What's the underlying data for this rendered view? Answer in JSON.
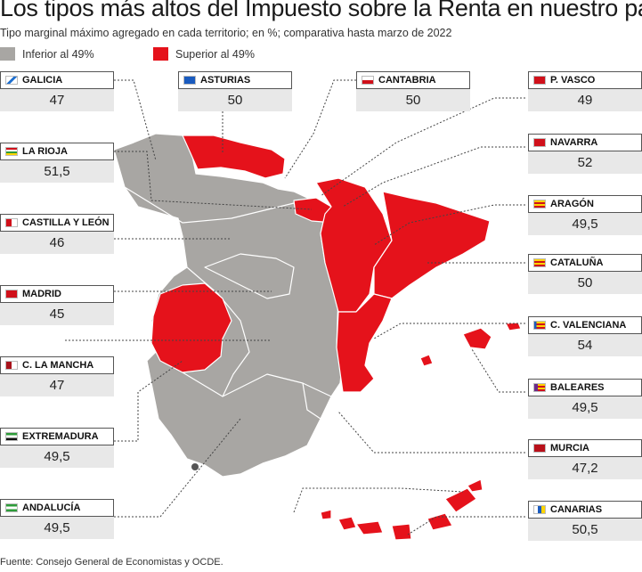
{
  "title": "Los tipos más altos del Impuesto sobre la Renta en nuestro país...",
  "subtitle": "Tipo marginal máximo agregado en cada territorio; en %; comparativa hasta marzo de 2022",
  "legend": [
    {
      "label": "Inferior al 49%",
      "color": "#a8a6a3"
    },
    {
      "label": "Superior al 49%",
      "color": "#e5121b"
    }
  ],
  "regions": [
    {
      "id": "galicia",
      "name": "GALICIA",
      "value": "47",
      "flag": "galicia-flag-icon"
    },
    {
      "id": "asturias",
      "name": "ASTURIAS",
      "value": "50",
      "flag": "asturias-flag-icon"
    },
    {
      "id": "cantabria",
      "name": "CANTABRIA",
      "value": "50",
      "flag": "cantabria-flag-icon"
    },
    {
      "id": "pvasco",
      "name": "P. VASCO",
      "value": "49",
      "flag": "pais-vasco-flag-icon"
    },
    {
      "id": "larioja",
      "name": "LA RIOJA",
      "value": "51,5",
      "flag": "la-rioja-flag-icon"
    },
    {
      "id": "navarra",
      "name": "NAVARRA",
      "value": "52",
      "flag": "navarra-flag-icon"
    },
    {
      "id": "castillaleon",
      "name": "CASTILLA Y LEÓN",
      "value": "46",
      "flag": "castilla-leon-flag-icon"
    },
    {
      "id": "aragon",
      "name": "ARAGÓN",
      "value": "49,5",
      "flag": "aragon-flag-icon"
    },
    {
      "id": "madrid",
      "name": "MADRID",
      "value": "45",
      "flag": "madrid-flag-icon"
    },
    {
      "id": "cataluna",
      "name": "CATALUÑA",
      "value": "50",
      "flag": "cataluna-flag-icon"
    },
    {
      "id": "cmancha",
      "name": "C. LA MANCHA",
      "value": "47",
      "flag": "castilla-la-mancha-flag-icon"
    },
    {
      "id": "cvalenciana",
      "name": "C. VALENCIANA",
      "value": "54",
      "flag": "valencia-flag-icon"
    },
    {
      "id": "extremadura",
      "name": "EXTREMADURA",
      "value": "49,5",
      "flag": "extremadura-flag-icon"
    },
    {
      "id": "baleares",
      "name": "BALEARES",
      "value": "49,5",
      "flag": "baleares-flag-icon"
    },
    {
      "id": "murcia",
      "name": "MURCIA",
      "value": "47,2",
      "flag": "murcia-flag-icon"
    },
    {
      "id": "andalucia",
      "name": "ANDALUCÍA",
      "value": "49,5",
      "flag": "andalucia-flag-icon"
    },
    {
      "id": "canarias",
      "name": "CANARIAS",
      "value": "50,5",
      "flag": "canarias-flag-icon"
    }
  ],
  "footer": "Fuente: Consejo General de Economistas y OCDE."
}
